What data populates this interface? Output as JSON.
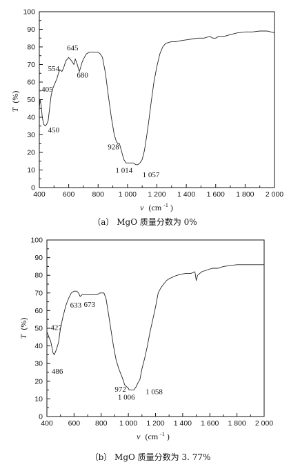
{
  "chart_data": [
    {
      "type": "line",
      "caption": "（a） MgO 质量分数为 0%",
      "xlabel_symbol": "v",
      "xlabel_unit": "(cm",
      "xlabel_sup": "-1",
      "xlabel_close": ")",
      "ylabel_symbol": "T",
      "ylabel_unit": "(%)",
      "xlim": [
        400,
        2000
      ],
      "ylim": [
        0,
        100
      ],
      "xticks": [
        400,
        600,
        800,
        1000,
        1200,
        1400,
        1600,
        1800,
        2000
      ],
      "xtick_labels": [
        "400",
        "600",
        "800",
        "1 000",
        "1 200",
        "1 400",
        "1 600",
        "1 800",
        "2 000"
      ],
      "yticks": [
        0,
        10,
        20,
        30,
        40,
        50,
        60,
        70,
        80,
        90,
        100
      ],
      "ytick_labels": [
        "0",
        "10",
        "20",
        "30",
        "40",
        "50",
        "60",
        "70",
        "80",
        "90",
        "100"
      ],
      "grid": false,
      "series": [
        {
          "x": [
            400,
            405,
            412,
            420,
            430,
            440,
            450,
            460,
            470,
            480,
            490,
            500,
            510,
            520,
            530,
            540,
            554,
            565,
            580,
            600,
            620,
            635,
            645,
            655,
            665,
            672,
            680,
            690,
            700,
            720,
            740,
            760,
            780,
            800,
            815,
            830,
            850,
            870,
            890,
            910,
            925,
            935,
            945,
            955,
            965,
            975,
            990,
            1005,
            1014,
            1025,
            1040,
            1057,
            1070,
            1085,
            1100,
            1115,
            1130,
            1145,
            1160,
            1180,
            1200,
            1220,
            1240,
            1260,
            1280,
            1300,
            1330,
            1360,
            1400,
            1440,
            1480,
            1520,
            1560,
            1580,
            1600,
            1620,
            1640,
            1660,
            1700,
            1750,
            1800,
            1850,
            1900,
            1950,
            2000
          ],
          "y": [
            45,
            50,
            47,
            40,
            36,
            35,
            36,
            38,
            45,
            52,
            56,
            58,
            60,
            62,
            65,
            67,
            66,
            68,
            72,
            74,
            72,
            70,
            73,
            71,
            68,
            66,
            68,
            71,
            73,
            76,
            77,
            77,
            77,
            77,
            76,
            74,
            65,
            52,
            40,
            30,
            26,
            25,
            25,
            22,
            19,
            16,
            14,
            14,
            14,
            14,
            14,
            13,
            13,
            14,
            16,
            21,
            29,
            38,
            48,
            60,
            69,
            76,
            80,
            82,
            82.5,
            83,
            83,
            83.5,
            84,
            84.5,
            85,
            85,
            86,
            85,
            85,
            86,
            86,
            86,
            87,
            88,
            88.5,
            88.5,
            89,
            89,
            88
          ]
        }
      ],
      "annotations": [
        {
          "x": 405,
          "label": "405"
        },
        {
          "x": 450,
          "label": "450"
        },
        {
          "x": 554,
          "label": "554"
        },
        {
          "x": 645,
          "label": "645"
        },
        {
          "x": 680,
          "label": "680"
        },
        {
          "x": 928,
          "label": "928"
        },
        {
          "x": 1014,
          "label": "1 014"
        },
        {
          "x": 1057,
          "label": "1 057"
        }
      ]
    },
    {
      "type": "line",
      "caption": "（b） MgO 质量分数为 3. 77%",
      "xlabel_symbol": "v",
      "xlabel_unit": "(cm",
      "xlabel_sup": "-1",
      "xlabel_close": ")",
      "ylabel_symbol": "T",
      "ylabel_unit": "(%)",
      "xlim": [
        400,
        2000
      ],
      "ylim": [
        0,
        100
      ],
      "xticks": [
        400,
        600,
        800,
        1000,
        1200,
        1400,
        1600,
        1800,
        2000
      ],
      "xtick_labels": [
        "400",
        "600",
        "800",
        "1 000",
        "1 200",
        "1 400",
        "1 600",
        "1 800",
        "2 000"
      ],
      "yticks": [
        0,
        10,
        20,
        30,
        40,
        50,
        60,
        70,
        80,
        90,
        100
      ],
      "ytick_labels": [
        "0",
        "10",
        "20",
        "30",
        "40",
        "50",
        "60",
        "70",
        "80",
        "90",
        "100"
      ],
      "grid": false,
      "series": [
        {
          "x": [
            400,
            410,
            420,
            427,
            435,
            445,
            455,
            470,
            486,
            500,
            520,
            540,
            560,
            580,
            600,
            620,
            633,
            645,
            660,
            673,
            690,
            710,
            730,
            750,
            770,
            790,
            810,
            820,
            835,
            850,
            870,
            890,
            910,
            930,
            950,
            965,
            972,
            985,
            1000,
            1006,
            1020,
            1040,
            1058,
            1070,
            1085,
            1100,
            1120,
            1140,
            1160,
            1180,
            1200,
            1220,
            1240,
            1260,
            1280,
            1300,
            1340,
            1380,
            1420,
            1460,
            1490,
            1500,
            1510,
            1540,
            1580,
            1620,
            1660,
            1700,
            1750,
            1800,
            1850,
            1900,
            1950,
            2000
          ],
          "y": [
            48,
            46,
            44,
            43,
            40,
            36,
            35,
            38,
            42,
            50,
            57,
            63,
            67,
            70,
            71,
            71,
            70,
            68,
            69,
            69,
            69,
            69,
            69,
            69,
            69,
            70,
            70,
            70,
            67,
            60,
            50,
            40,
            32,
            27,
            23,
            20,
            18,
            17,
            16,
            15,
            15,
            15,
            17,
            19,
            21,
            27,
            33,
            40,
            48,
            55,
            62,
            70,
            73,
            75,
            77,
            78,
            79.5,
            80.5,
            81,
            81,
            82,
            77,
            80,
            82,
            83,
            84,
            84,
            85,
            85.5,
            86,
            86,
            86,
            86,
            86
          ]
        }
      ],
      "annotations": [
        {
          "x": 427,
          "label": "427"
        },
        {
          "x": 486,
          "label": "486"
        },
        {
          "x": 633,
          "label": "633"
        },
        {
          "x": 673,
          "label": "673"
        },
        {
          "x": 972,
          "label": "972"
        },
        {
          "x": 1006,
          "label": "1 006"
        },
        {
          "x": 1058,
          "label": "1 058"
        }
      ]
    }
  ]
}
